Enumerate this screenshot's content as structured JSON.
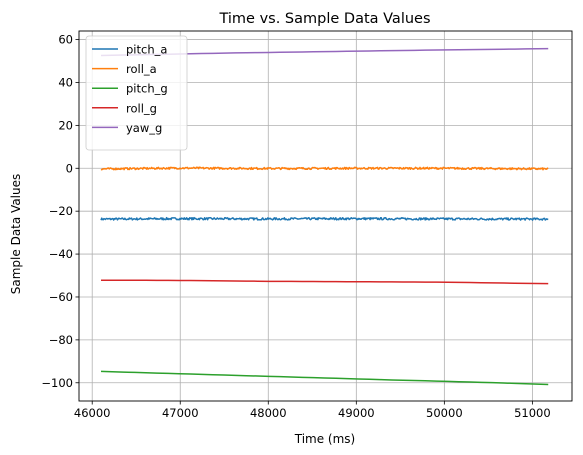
{
  "chart_data": {
    "type": "line",
    "title": "Time vs. Sample Data Values",
    "xlabel": "Time (ms)",
    "ylabel": "Sample Data Values",
    "xlim": [
      45850,
      51450
    ],
    "ylim": [
      -108.5,
      64
    ],
    "xticks": [
      46000,
      47000,
      48000,
      49000,
      50000,
      51000
    ],
    "yticks": [
      -100,
      -80,
      -60,
      -40,
      -20,
      0,
      20,
      40,
      60
    ],
    "xtick_labels": [
      "46000",
      "47000",
      "48000",
      "49000",
      "50000",
      "51000"
    ],
    "ytick_labels": [
      "−100",
      "−80",
      "−60",
      "−40",
      "−20",
      "0",
      "20",
      "40",
      "60"
    ],
    "grid": true,
    "legend_position": "top-left",
    "series": [
      {
        "name": "pitch_a",
        "color": "#1f77b4",
        "noise": 0.5,
        "x": [
          46100,
          47000,
          48000,
          49000,
          50000,
          51180
        ],
        "y": [
          -23.7,
          -23.5,
          -23.6,
          -23.5,
          -23.6,
          -23.7
        ]
      },
      {
        "name": "roll_a",
        "color": "#ff7f0e",
        "noise": 0.45,
        "x": [
          46100,
          47000,
          48000,
          49000,
          50000,
          51180
        ],
        "y": [
          -0.3,
          0.1,
          -0.1,
          0.0,
          0.0,
          -0.3
        ]
      },
      {
        "name": "pitch_g",
        "color": "#2ca02c",
        "noise": 0,
        "x": [
          46100,
          46500,
          47000,
          47500,
          48000,
          48500,
          49000,
          49500,
          50000,
          50500,
          51180
        ],
        "y": [
          -94.7,
          -95.2,
          -95.8,
          -96.4,
          -97.0,
          -97.6,
          -98.2,
          -98.8,
          -99.3,
          -99.9,
          -100.8
        ]
      },
      {
        "name": "roll_g",
        "color": "#d62728",
        "noise": 0,
        "x": [
          46100,
          46500,
          47000,
          47500,
          48000,
          48500,
          49000,
          49500,
          50000,
          50500,
          51180
        ],
        "y": [
          -52.2,
          -52.2,
          -52.3,
          -52.5,
          -52.7,
          -52.8,
          -52.9,
          -53.0,
          -53.1,
          -53.4,
          -53.8
        ]
      },
      {
        "name": "yaw_g",
        "color": "#9467bd",
        "noise": 0,
        "x": [
          46100,
          46500,
          47000,
          47500,
          48000,
          48500,
          49000,
          49500,
          50000,
          50500,
          51180
        ],
        "y": [
          52.6,
          52.9,
          53.3,
          53.7,
          54.0,
          54.3,
          54.6,
          54.9,
          55.2,
          55.4,
          55.8
        ]
      }
    ]
  }
}
